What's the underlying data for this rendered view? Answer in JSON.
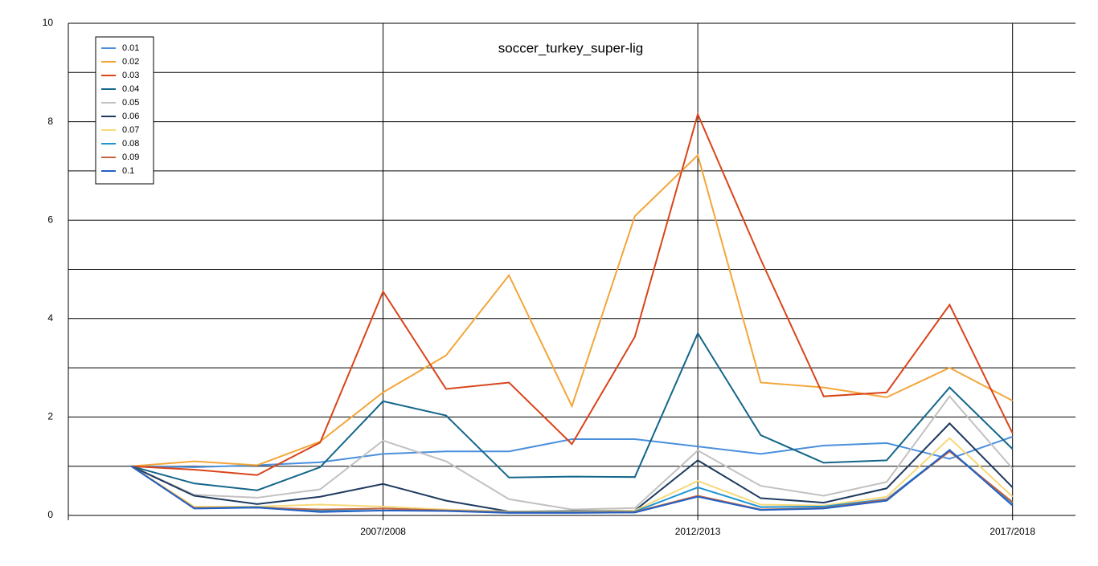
{
  "chart_data": {
    "type": "line",
    "title": "soccer_turkey_super-lig",
    "categories": [
      null,
      null,
      null,
      null,
      "2007/2008",
      null,
      null,
      null,
      null,
      "2012/2013",
      null,
      null,
      null,
      null,
      "2017/2018"
    ],
    "ylim": [
      0,
      10
    ],
    "yticks": [
      0,
      2,
      4,
      6,
      8,
      10
    ],
    "grid": true,
    "minor_grid": true,
    "legend": "upper left",
    "series": [
      {
        "name": "0.01",
        "color": "#4a8fdc",
        "values": [
          1,
          0.98,
          1.02,
          1.08,
          1.25,
          1.3,
          1.3,
          1.55,
          1.55,
          1.4,
          1.25,
          1.42,
          1.47,
          1.15,
          1.6
        ]
      },
      {
        "name": "0.02",
        "color": "#f3a63a",
        "values": [
          1,
          1.1,
          1.02,
          1.5,
          2.5,
          3.25,
          4.88,
          2.22,
          6.08,
          7.32,
          2.7,
          2.6,
          2.4,
          3.0,
          2.33
        ]
      },
      {
        "name": "0.03",
        "color": "#d9441a",
        "values": [
          1,
          0.93,
          0.82,
          1.48,
          4.55,
          2.57,
          2.7,
          1.45,
          3.63,
          8.15,
          5.2,
          2.42,
          2.5,
          4.28,
          1.67
        ]
      },
      {
        "name": "0.04",
        "color": "#14668a",
        "values": [
          1,
          0.65,
          0.51,
          0.98,
          2.32,
          2.03,
          0.77,
          0.79,
          0.78,
          3.7,
          1.63,
          1.07,
          1.12,
          2.6,
          1.35
        ]
      },
      {
        "name": "0.05",
        "color": "#c3c0c0",
        "values": [
          1,
          0.42,
          0.36,
          0.53,
          1.52,
          1.1,
          0.33,
          0.12,
          0.15,
          1.32,
          0.6,
          0.4,
          0.68,
          2.42,
          0.95
        ]
      },
      {
        "name": "0.06",
        "color": "#1e3a5f",
        "values": [
          1,
          0.4,
          0.23,
          0.38,
          0.64,
          0.3,
          0.08,
          0.09,
          0.1,
          1.12,
          0.35,
          0.26,
          0.55,
          1.87,
          0.57
        ]
      },
      {
        "name": "0.07",
        "color": "#f8d878",
        "values": [
          1,
          0.18,
          0.18,
          0.22,
          0.18,
          0.12,
          0.08,
          0.08,
          0.1,
          0.7,
          0.22,
          0.2,
          0.38,
          1.57,
          0.38
        ]
      },
      {
        "name": "0.08",
        "color": "#1f95d4",
        "values": [
          1,
          0.15,
          0.17,
          0.1,
          0.14,
          0.1,
          0.07,
          0.07,
          0.08,
          0.57,
          0.17,
          0.18,
          0.33,
          1.32,
          0.25
        ]
      },
      {
        "name": "0.09",
        "color": "#c4653f",
        "values": [
          1,
          0.15,
          0.16,
          0.12,
          0.14,
          0.1,
          0.06,
          0.06,
          0.07,
          0.4,
          0.12,
          0.15,
          0.32,
          1.3,
          0.27
        ]
      },
      {
        "name": "0.1",
        "color": "#2360c4",
        "values": [
          1,
          0.14,
          0.16,
          0.07,
          0.1,
          0.09,
          0.05,
          0.05,
          0.06,
          0.38,
          0.11,
          0.14,
          0.3,
          1.33,
          0.2
        ]
      }
    ]
  }
}
